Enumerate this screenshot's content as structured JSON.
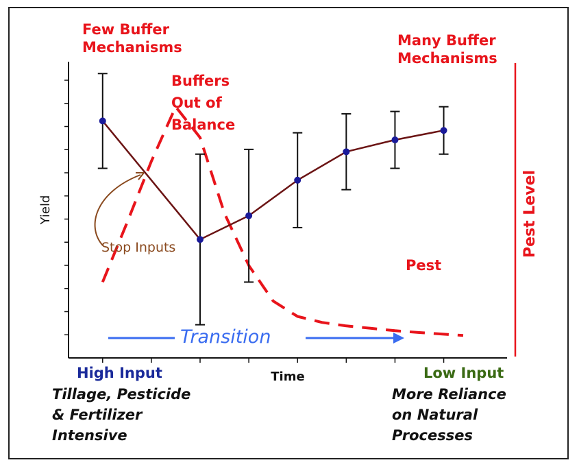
{
  "chart_data": {
    "type": "line",
    "xlabel": "Time",
    "ylabel": "Yield",
    "y2label": "Pest Level",
    "series": [
      {
        "name": "",
        "kind": "line-errorbar",
        "color": "#6b1414",
        "x": [
          1,
          3,
          4,
          5,
          6,
          7,
          8
        ],
        "y": [
          10,
          5,
          6,
          7.5,
          8.7,
          9.2,
          9.6
        ],
        "err_low": [
          2,
          3.6,
          2.8,
          2,
          1.6,
          1.2,
          1
        ],
        "err_high": [
          2,
          3.6,
          2.8,
          2,
          1.6,
          1.2,
          1
        ]
      },
      {
        "name": "Pest",
        "kind": "dashed-line",
        "color": "#e8141b",
        "x": [
          1,
          1.5,
          2,
          2.5,
          3,
          3.5,
          4,
          4.5,
          5,
          5.5,
          6,
          6.5,
          7,
          7.5,
          8,
          8.4
        ],
        "y": [
          3.2,
          5.7,
          8.3,
          10.6,
          9.3,
          6.1,
          3.9,
          2.4,
          1.75,
          1.5,
          1.35,
          1.25,
          1.15,
          1.07,
          1.0,
          0.95
        ]
      }
    ],
    "xlim": [
      0.3,
      9.3
    ],
    "ylim": [
      0,
      12.5
    ],
    "annotations": {
      "few_buffer": "Few Buffer\nMechanisms",
      "many_buffer": "Many Buffer\nMechanisms",
      "out_of_balance": "Buffers\nOut of\nBalance",
      "stop_inputs": "Stop Inputs",
      "pest": "Pest",
      "transition": "Transition",
      "high_input": "High Input",
      "low_input": "Low Input",
      "high_desc": "Tillage, Pesticide\n& Fertilizer\nIntensive",
      "low_desc": "More Reliance\non Natural\nProcesses"
    },
    "colors": {
      "yield": "#6b1414",
      "pest": "#e8141b",
      "transition": "#3a6cf0",
      "stop_inputs": "#8a4a1f",
      "high_input": "#1a2a9a",
      "low_input": "#3a6a14"
    }
  }
}
